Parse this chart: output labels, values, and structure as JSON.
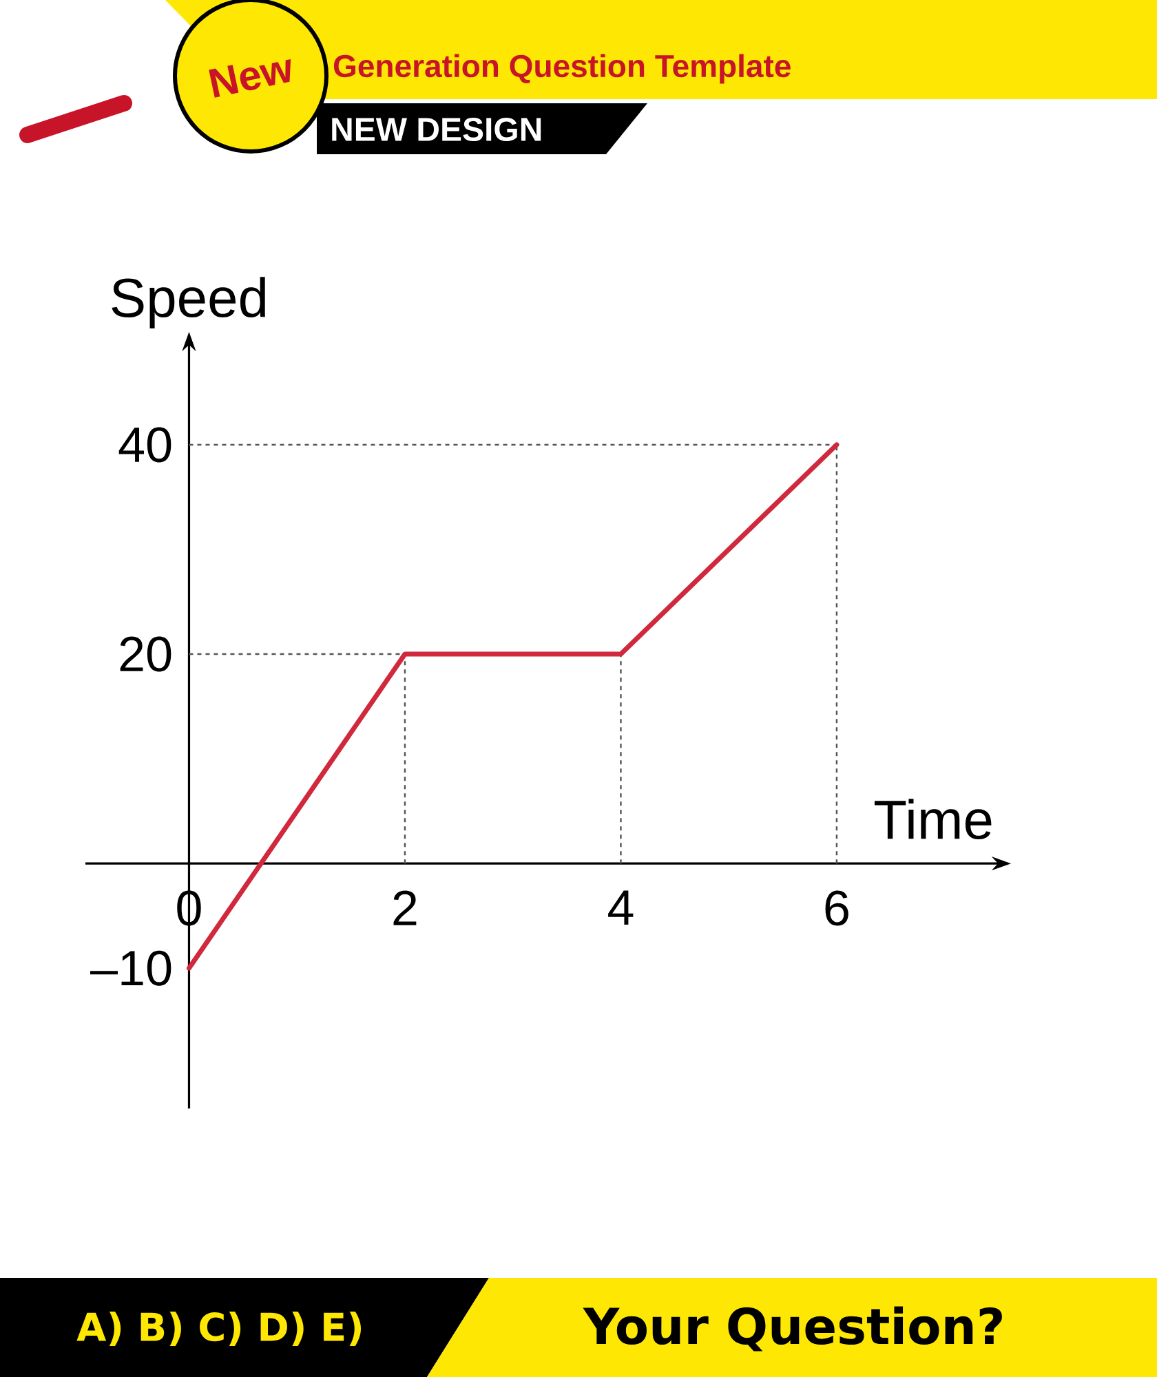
{
  "chart_data": {
    "type": "line",
    "xlabel": "Time",
    "ylabel": "Speed",
    "x": [
      0,
      2,
      4,
      6
    ],
    "series": [
      {
        "color": "#d0283c",
        "values": [
          -10,
          20,
          20,
          40
        ]
      }
    ],
    "xlim": [
      -0.96,
      7.5
    ],
    "ylim": [
      -23.4,
      49.6
    ],
    "xticks": [
      0,
      2,
      4,
      6
    ],
    "yticks": [
      {
        "value": -10,
        "label": "–10"
      },
      20,
      40
    ],
    "ref_lines": [
      {
        "axis": "y",
        "value": 20,
        "color": "#555555",
        "line_style": "dashed"
      },
      {
        "axis": "y",
        "value": 40,
        "color": "#555555",
        "line_style": "dashed"
      },
      {
        "axis": "x",
        "value": 2,
        "color": "#555555",
        "line_style": "dashed"
      },
      {
        "axis": "x",
        "value": 4,
        "color": "#555555",
        "line_style": "dashed"
      },
      {
        "axis": "x",
        "value": 6,
        "color": "#555555",
        "line_style": "dashed"
      }
    ],
    "marker": "none",
    "line_style": "solid",
    "annotations": [
      "New",
      "Generation Question Template",
      "NEW DESIGN",
      "A) B) C) D) E)",
      "Your Question?"
    ]
  }
}
